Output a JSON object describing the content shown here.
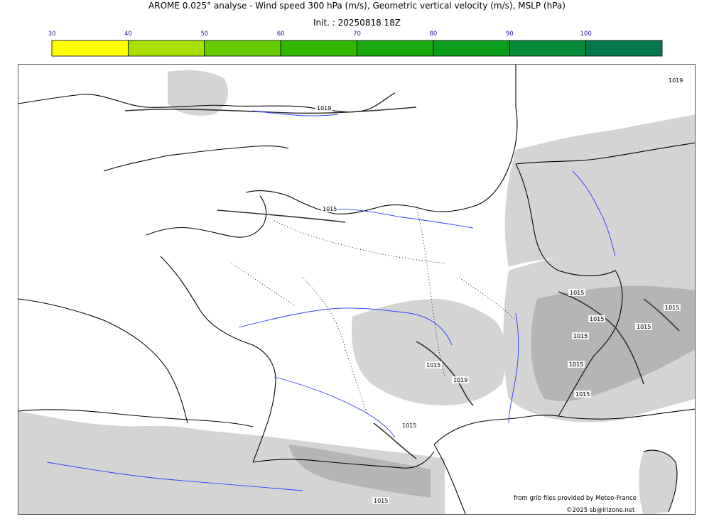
{
  "header": {
    "title": "AROME 0.025° analyse - Wind speed 300 hPa (m/s), Geometric vertical velocity (m/s), MSLP (hPa)",
    "init": "Init. : 20250818 18Z"
  },
  "colorbar": {
    "ticks": [
      "30",
      "40",
      "50",
      "60",
      "70",
      "80",
      "90",
      "100"
    ],
    "colors": [
      "#ffff00",
      "#a8e000",
      "#66cc00",
      "#33b800",
      "#1aaa10",
      "#0a9e1a",
      "#078a3a",
      "#06784e"
    ],
    "tick_color": "#1a1a8c"
  },
  "map": {
    "isobar_labels": [
      {
        "text": "1019"
      },
      {
        "text": "1015"
      },
      {
        "text": "1019"
      },
      {
        "text": "1015"
      },
      {
        "text": "1015"
      },
      {
        "text": "1015"
      },
      {
        "text": "1015"
      },
      {
        "text": "1015"
      },
      {
        "text": "1015"
      },
      {
        "text": "1015"
      },
      {
        "text": "1015"
      },
      {
        "text": "1019"
      },
      {
        "text": "1015"
      },
      {
        "text": "1015"
      }
    ],
    "colors": {
      "coast": "#000000",
      "river": "#2a3cff",
      "terrain": "#d4d4d4",
      "terrain_dark": "#9a9a9a"
    }
  },
  "credits": {
    "source": "from grib files provided by Meteo-France",
    "copyright": "©2025 sb@irizone.net"
  }
}
